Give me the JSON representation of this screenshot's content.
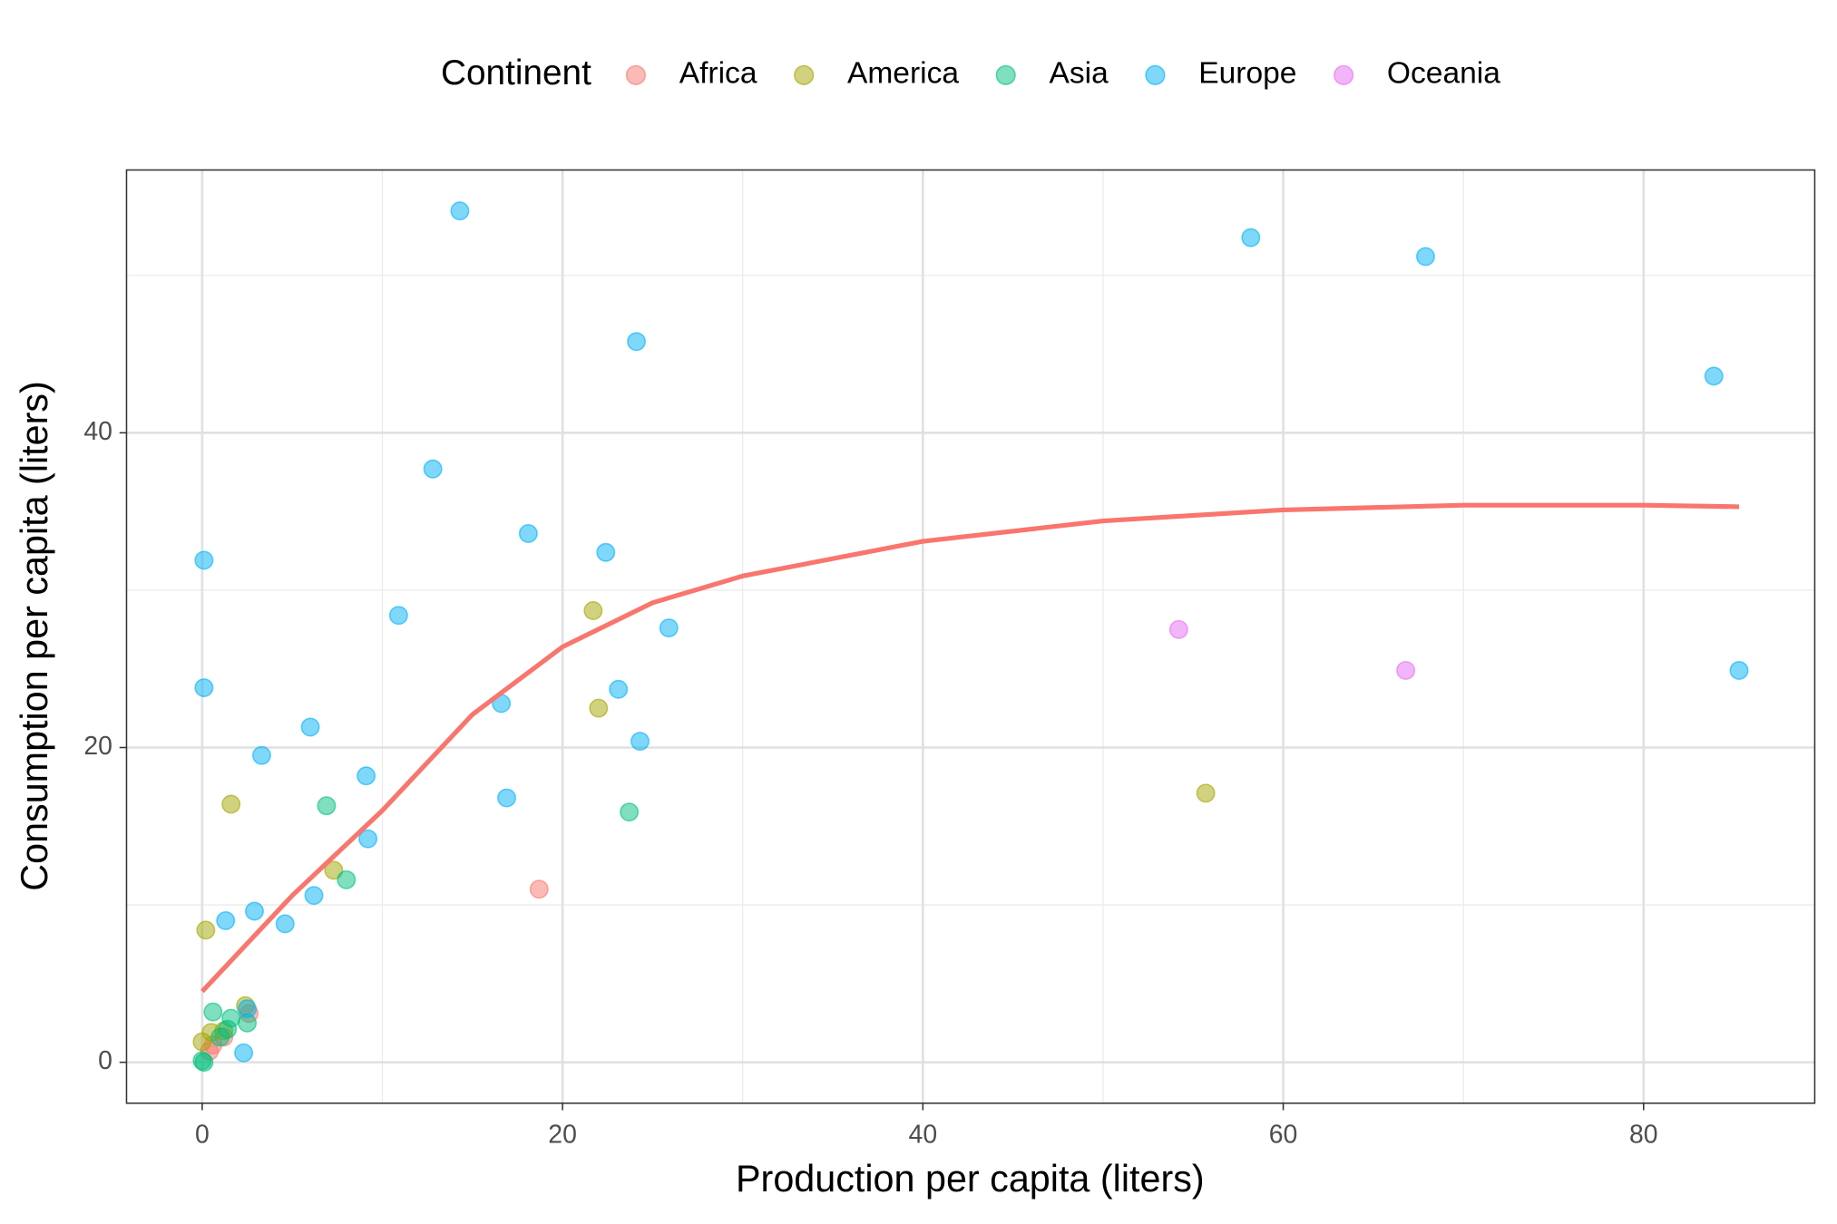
{
  "chart_data": {
    "type": "scatter",
    "x_label": "Production per capita (liters)",
    "y_label": "Consumption per capita (liters)",
    "legend_title": "Continent",
    "legend_position": "top",
    "grid": true,
    "xlim": [
      -4.2,
      89.5
    ],
    "ylim": [
      -2.6,
      56.7
    ],
    "xticks": [
      0,
      20,
      40,
      60,
      80
    ],
    "yticks": [
      0,
      20,
      40
    ],
    "x_minor_grid": [
      10,
      30,
      50,
      70
    ],
    "y_minor_grid": [
      10,
      30,
      50
    ],
    "series": [
      {
        "name": "Africa",
        "color": "#F8766D",
        "x": [
          18.7,
          2.6,
          0.4,
          1.2,
          0.6
        ],
        "y": [
          11.0,
          3.1,
          0.7,
          1.6,
          1.1
        ]
      },
      {
        "name": "America",
        "color": "#A3A500",
        "x": [
          21.7,
          22.0,
          55.7,
          1.6,
          7.3,
          0.2,
          2.4,
          0,
          0.5,
          1.2
        ],
        "y": [
          28.7,
          22.5,
          17.1,
          16.4,
          12.2,
          8.4,
          3.6,
          1.3,
          1.9,
          2.0
        ]
      },
      {
        "name": "Asia",
        "color": "#00BF7D",
        "x": [
          6.9,
          23.7,
          8.0,
          0.6,
          1.6,
          2.5,
          1.4,
          0,
          0.1,
          1.0
        ],
        "y": [
          16.3,
          15.9,
          11.6,
          3.2,
          2.8,
          2.5,
          2.1,
          0.1,
          0,
          1.6
        ]
      },
      {
        "name": "Europe",
        "color": "#00B0F6",
        "x": [
          14.3,
          58.2,
          67.9,
          24.1,
          83.9,
          12.8,
          18.1,
          22.4,
          0.1,
          10.9,
          25.9,
          0.1,
          23.1,
          16.6,
          85.3,
          24.3,
          6.0,
          3.3,
          9.1,
          16.9,
          9.2,
          6.2,
          2.9,
          1.3,
          4.6,
          2.3,
          2.5
        ],
        "y": [
          54.1,
          52.4,
          51.2,
          45.8,
          43.6,
          37.7,
          33.6,
          32.4,
          31.9,
          28.4,
          27.6,
          23.8,
          23.7,
          22.8,
          24.9,
          20.4,
          21.3,
          19.5,
          18.2,
          16.8,
          14.2,
          10.6,
          9.6,
          9.0,
          8.8,
          0.6,
          3.4
        ]
      },
      {
        "name": "Oceania",
        "color": "#E76BF3",
        "x": [
          54.2,
          66.8
        ],
        "y": [
          27.5,
          24.9
        ]
      }
    ],
    "trend": {
      "color": "#F8766D",
      "x": [
        0,
        5,
        10,
        15,
        20,
        25,
        30,
        40,
        50,
        60,
        70,
        80,
        85.3
      ],
      "y": [
        4.5,
        10.6,
        16.0,
        22.1,
        26.4,
        29.2,
        30.9,
        33.1,
        34.4,
        35.1,
        35.4,
        35.4,
        35.3
      ]
    }
  }
}
